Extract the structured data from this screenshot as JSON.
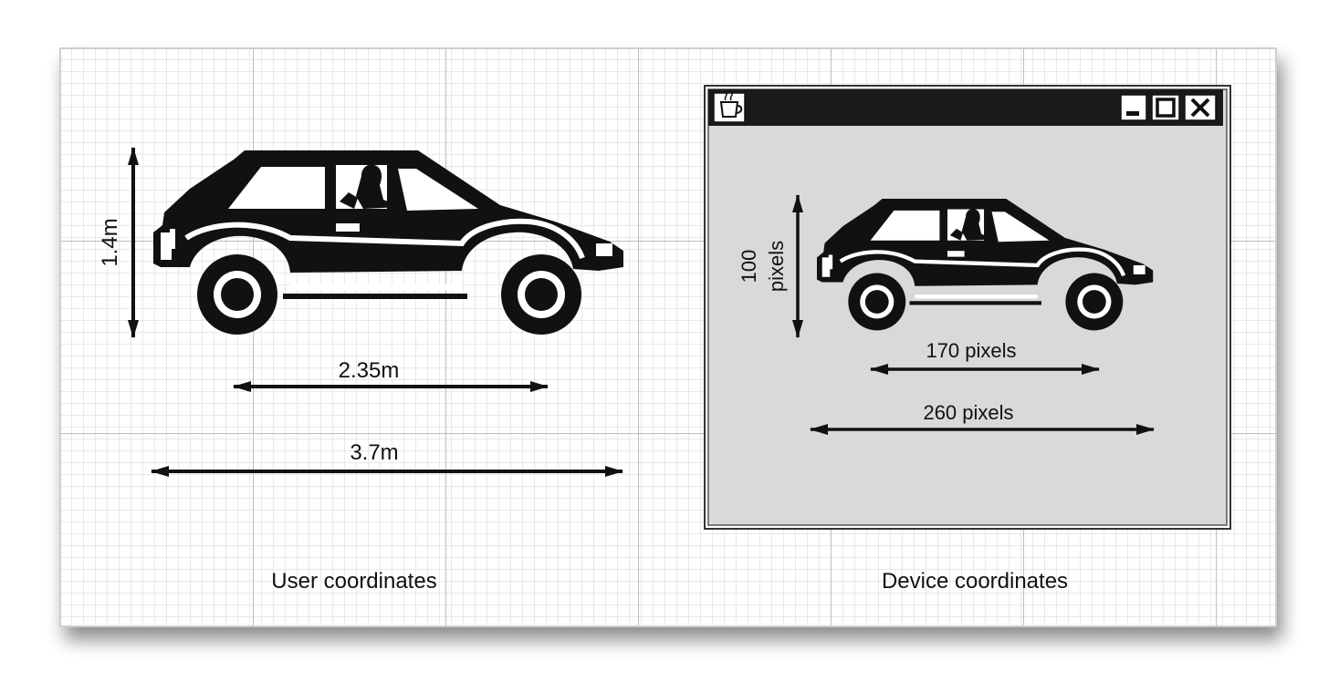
{
  "user_panel": {
    "caption": "User coordinates",
    "height_label": "1.4m",
    "wheelbase_label": "2.35m",
    "length_label": "3.7m"
  },
  "device_panel": {
    "caption": "Device coordinates",
    "height_label_line1": "100",
    "height_label_line2": "pixels",
    "wheelbase_label": "170 pixels",
    "length_label": "260 pixels",
    "window": {
      "app-icon": "java-cup-icon",
      "controls": [
        "minimize-icon",
        "maximize-icon",
        "close-icon"
      ]
    }
  },
  "colors": {
    "grid_fine": "#e4e4e4",
    "grid_major": "#bdbdbd",
    "car": "#111111",
    "window_client": "#d9d9d9",
    "titlebar": "#1a1a1a"
  }
}
